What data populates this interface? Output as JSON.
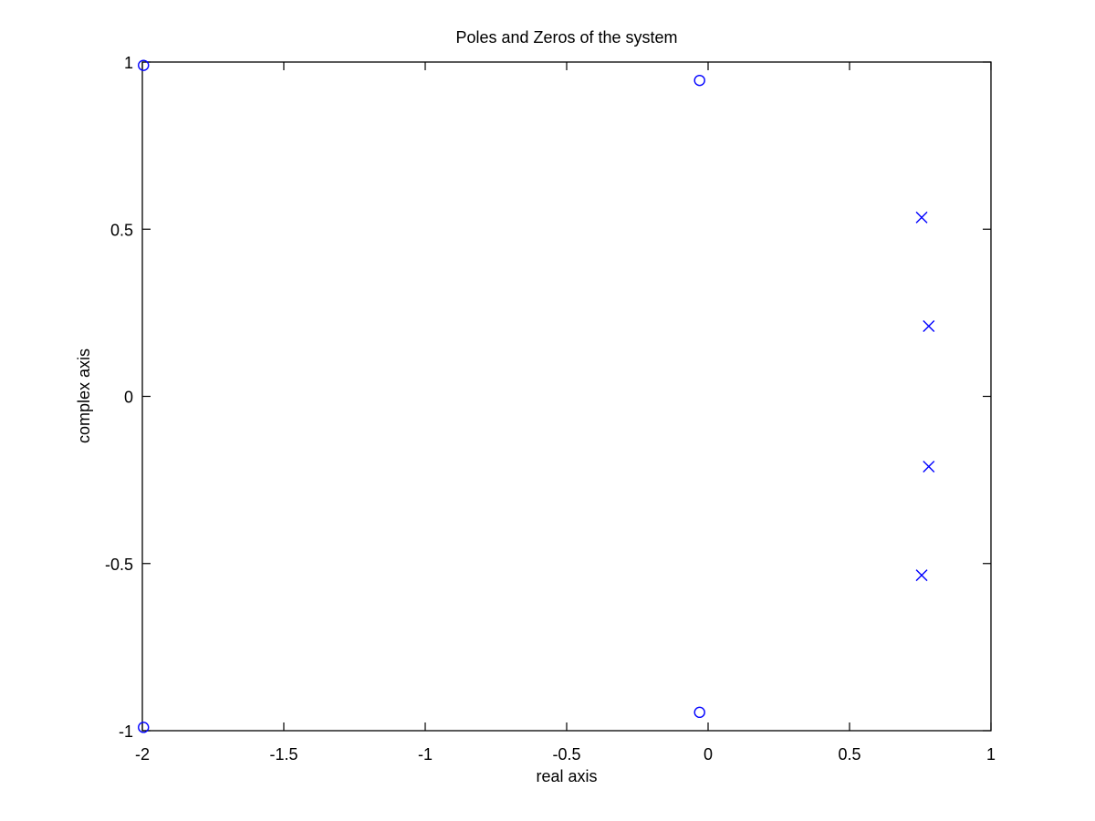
{
  "chart_data": {
    "type": "scatter",
    "title": "Poles and Zeros of the system",
    "xlabel": "real axis",
    "ylabel": "complex axis",
    "xlim": [
      -2,
      1
    ],
    "ylim": [
      -1,
      1
    ],
    "xticks": [
      -2,
      -1.5,
      -1,
      -0.5,
      0,
      0.5,
      1
    ],
    "xtick_labels": [
      "-2",
      "-1.5",
      "-1",
      "-0.5",
      "0",
      "0.5",
      "1"
    ],
    "yticks": [
      -1,
      -0.5,
      0,
      0.5,
      1
    ],
    "ytick_labels": [
      "-1",
      "-0.5",
      "0",
      "0.5",
      "1"
    ],
    "grid": false,
    "marker_color": "#0000ff",
    "series": [
      {
        "marker": "o",
        "points": [
          {
            "x": -1.996,
            "y": 0.99
          },
          {
            "x": -1.996,
            "y": -0.99
          },
          {
            "x": -0.03,
            "y": 0.945
          },
          {
            "x": -0.03,
            "y": -0.945
          }
        ]
      },
      {
        "marker": "x",
        "points": [
          {
            "x": 0.755,
            "y": 0.535
          },
          {
            "x": 0.78,
            "y": 0.21
          },
          {
            "x": 0.78,
            "y": -0.21
          },
          {
            "x": 0.755,
            "y": -0.535
          }
        ]
      }
    ]
  }
}
